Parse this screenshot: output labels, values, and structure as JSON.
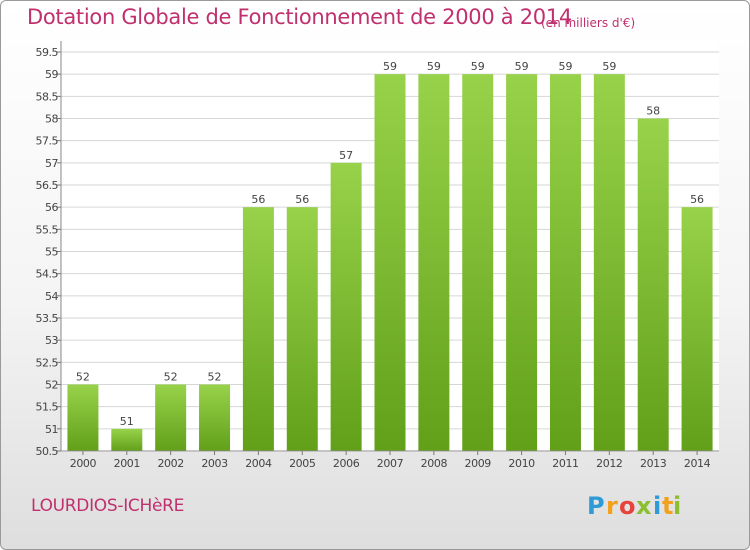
{
  "chart_data": {
    "type": "bar",
    "title": "Dotation Globale de Fonctionnement de 2000 à 2014",
    "subtitle": "(en milliers d'€)",
    "categories": [
      "2000",
      "2001",
      "2002",
      "2003",
      "2004",
      "2005",
      "2006",
      "2007",
      "2008",
      "2009",
      "2010",
      "2011",
      "2012",
      "2013",
      "2014"
    ],
    "values": [
      52,
      51,
      52,
      52,
      56,
      56,
      57,
      59,
      59,
      59,
      59,
      59,
      59,
      58,
      56
    ],
    "data_labels": [
      "52",
      "51",
      "52",
      "52",
      "56",
      "56",
      "57",
      "59",
      "59",
      "59",
      "59",
      "59",
      "59",
      "58",
      "56"
    ],
    "ylim": [
      50.5,
      59.5
    ],
    "yticks": [
      "50.5",
      "51",
      "51.5",
      "52",
      "52.5",
      "53",
      "53.5",
      "54",
      "54.5",
      "55",
      "55.5",
      "56",
      "56.5",
      "57",
      "57.5",
      "58",
      "58.5",
      "59",
      "59.5"
    ],
    "grid": true,
    "bar_color": "#7cb82f"
  },
  "commune": "LOURDIOS-ICHèRE",
  "logo": {
    "letters": [
      "P",
      "r",
      "o",
      "x",
      "i",
      "t",
      "i"
    ],
    "colors": [
      "#2e9ad6",
      "#f2a11d",
      "#e8423c",
      "#8bbf2f",
      "#2e9ad6",
      "#f2a11d",
      "#8bbf2f"
    ]
  }
}
